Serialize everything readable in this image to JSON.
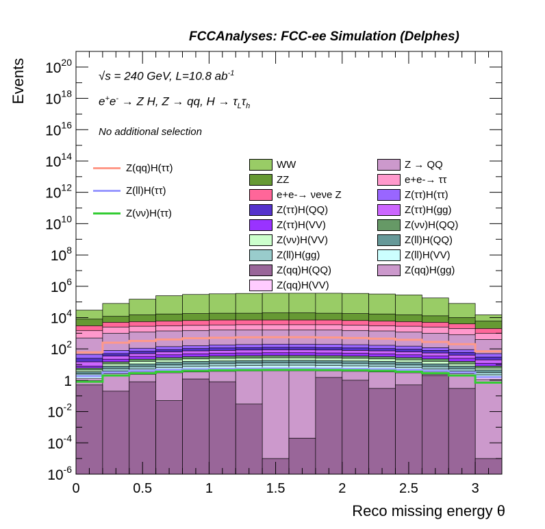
{
  "banner": "FCCAnalyses: FCC-ee Simulation (Delphes)",
  "info": {
    "energy_prefix": "√s = 240 GeV, L=10.8 ab",
    "energy_sup": "-1",
    "process_a": "e",
    "process_b": " → Z H, Z → qq, H → τ",
    "process_sub1": "L",
    "process_sub2": "h",
    "selection": "No additional selection"
  },
  "chart_data": {
    "type": "area",
    "title": "FCCAnalyses: FCC-ee Simulation (Delphes)",
    "xlabel": "Reco missing energy θ",
    "ylabel": "Events",
    "xlim": [
      0,
      3.2
    ],
    "ylim": [
      1e-06,
      1e+21
    ],
    "y_scale": "log",
    "grid": false,
    "legend_placement": "top",
    "bin_edges": [
      0,
      0.2,
      0.4,
      0.6,
      0.8,
      1.0,
      1.2,
      1.4,
      1.6,
      1.8,
      2.0,
      2.2,
      2.4,
      2.6,
      2.8,
      3.0,
      3.2
    ],
    "x_ticks": [
      0,
      0.5,
      1,
      1.5,
      2,
      2.5,
      3
    ],
    "x_tick_labels": [
      "0",
      "0.5",
      "1",
      "1.5",
      "2",
      "2.5",
      "3"
    ],
    "y_ticks": [
      {
        "mant": "10",
        "exp": "-6",
        "v": 1e-06
      },
      {
        "mant": "10",
        "exp": "-4",
        "v": 0.0001
      },
      {
        "mant": "10",
        "exp": "-2",
        "v": 0.01
      },
      {
        "mant": "1",
        "exp": "",
        "v": 1
      },
      {
        "mant": "10",
        "exp": "2",
        "v": 100.0
      },
      {
        "mant": "10",
        "exp": "4",
        "v": 10000.0
      },
      {
        "mant": "10",
        "exp": "6",
        "v": 1000000.0
      },
      {
        "mant": "10",
        "exp": "8",
        "v": 100000000.0
      },
      {
        "mant": "10",
        "exp": "10",
        "v": 10000000000.0
      },
      {
        "mant": "10",
        "exp": "12",
        "v": 1000000000000.0
      },
      {
        "mant": "10",
        "exp": "14",
        "v": 100000000000000.0
      },
      {
        "mant": "10",
        "exp": "16",
        "v": 1e+16
      },
      {
        "mant": "10",
        "exp": "18",
        "v": 1e+18
      },
      {
        "mant": "10",
        "exp": "20",
        "v": 1e+20
      }
    ],
    "stack_cumulative": [
      {
        "name": "WW",
        "color": "#99cc66",
        "values": [
          30000.0,
          80000.0,
          150000.0,
          250000.0,
          300000.0,
          330000.0,
          350000.0,
          360000.0,
          360000.0,
          360000.0,
          350000.0,
          320000.0,
          280000.0,
          180000.0,
          80000.0,
          15000.0
        ]
      },
      {
        "name": "ZZ",
        "color": "#669933",
        "values": [
          8000.0,
          12000.0,
          15000.0,
          17000.0,
          18000.0,
          19000.0,
          19000.0,
          20000.0,
          20000.0,
          19000.0,
          18000.0,
          17000.0,
          15000.0,
          13000.0,
          10000.0,
          6000.0
        ]
      },
      {
        "name": "e+e-→ νeνe Z",
        "color": "#ff6699",
        "values": [
          3000.0,
          5000.0,
          5500.0,
          6000.0,
          6500.0,
          7000.0,
          7000.0,
          7000.0,
          7000.0,
          7000.0,
          6500.0,
          6000.0,
          5500.0,
          5000.0,
          4000.0,
          2000.0
        ]
      },
      {
        "name": "e+e-→ ττ",
        "color": "#ff99cc",
        "values": [
          1500.0,
          2500.0,
          2800.0,
          3000.0,
          3200.0,
          3400.0,
          3500.0,
          3500.0,
          3500.0,
          3500.0,
          3300.0,
          3000.0,
          2800.0,
          2500.0,
          2000.0,
          1000.0
        ]
      },
      {
        "name": "Z → QQ",
        "color": "#cc99cc",
        "values": [
          500.0,
          1000.0,
          1200.0,
          1400.0,
          1500.0,
          1600.0,
          1600.0,
          1600.0,
          1600.0,
          1600.0,
          1500.0,
          1400.0,
          1200.0,
          1000.0,
          800.0,
          400.0
        ]
      },
      {
        "name": "Z(ττ)H(ττ)",
        "color": "#9966ff",
        "values": [
          45,
          80,
          110,
          140,
          160,
          180,
          190,
          200,
          200,
          195,
          185,
          170,
          150,
          120,
          90,
          50
        ]
      },
      {
        "name": "Z(ττ)H(QQ)",
        "color": "#5533cc",
        "values": [
          25,
          50,
          70,
          90,
          105,
          115,
          120,
          125,
          125,
          120,
          115,
          105,
          95,
          80,
          60,
          30
        ]
      },
      {
        "name": "Z(ττ)H(gg)",
        "color": "#cc66ff",
        "values": [
          15,
          35,
          50,
          65,
          75,
          80,
          85,
          88,
          88,
          85,
          80,
          75,
          65,
          55,
          40,
          20
        ]
      },
      {
        "name": "Z(ττ)H(VV)",
        "color": "#9933ff",
        "values": [
          8,
          22,
          33,
          42,
          48,
          52,
          55,
          57,
          57,
          55,
          52,
          48,
          42,
          35,
          25,
          12
        ]
      },
      {
        "name": "Z(νν)H(QQ)",
        "color": "#669966",
        "values": [
          6,
          15,
          22,
          28,
          32,
          35,
          37,
          38,
          38,
          37,
          35,
          32,
          28,
          23,
          16,
          8
        ]
      },
      {
        "name": "Z(νν)H(VV)",
        "color": "#ccffcc",
        "values": [
          4.5,
          11,
          16,
          20,
          23,
          25,
          26,
          27,
          27,
          26,
          25,
          23,
          20,
          16,
          11,
          6
        ]
      },
      {
        "name": "Z(ll)H(QQ)",
        "color": "#669999",
        "values": [
          3.5,
          8,
          11,
          14,
          16,
          17,
          18,
          18.5,
          18.5,
          18,
          17,
          16,
          14,
          11,
          8,
          4.5
        ]
      },
      {
        "name": "Z(ll)H(gg)",
        "color": "#99cccc",
        "values": [
          2.5,
          5.5,
          7.5,
          9.5,
          11,
          12,
          12.5,
          13,
          13,
          12.5,
          12,
          11,
          9.5,
          7.5,
          5.5,
          3.2
        ]
      },
      {
        "name": "Z(ll)H(VV)",
        "color": "#ccffff",
        "values": [
          1.8,
          3.8,
          5.2,
          6.5,
          7.5,
          8.2,
          8.6,
          9,
          9,
          8.6,
          8.2,
          7.5,
          6.5,
          5.2,
          3.8,
          2.2
        ]
      },
      {
        "name": "Z(qq)H(VV)",
        "color": "#ffccff",
        "values": [
          1.3,
          2.6,
          3.5,
          4.5,
          5.2,
          5.6,
          5.9,
          6.1,
          6.1,
          5.9,
          5.6,
          5.2,
          4.5,
          3.5,
          2.6,
          1.5
        ]
      },
      {
        "name": "Z(qq)H(gg)",
        "color": "#cc99cc",
        "values": [
          1,
          1.8,
          2.4,
          3,
          3.4,
          3.7,
          3.9,
          4,
          4,
          3.9,
          3.7,
          3.4,
          3,
          2.4,
          1.8,
          1.1
        ]
      },
      {
        "name": "Z(qq)H(QQ)",
        "color": "#996699",
        "values": [
          0.5,
          0.2,
          0.8,
          0.05,
          1.2,
          0.8,
          0.03,
          1e-05,
          0.0002,
          1.5,
          1.0,
          0.3,
          0.5,
          2.0,
          0.3,
          1e-05
        ]
      }
    ],
    "signal_lines": [
      {
        "name": "Z(qq)H(ττ)",
        "color": "#ff9988",
        "values": [
          60,
          250,
          320,
          400,
          480,
          520,
          550,
          560,
          560,
          540,
          500,
          450,
          380,
          280,
          200,
          70
        ]
      },
      {
        "name": "Z(ll)H(ττ)",
        "color": "#9999ff",
        "values": [
          1.8,
          3.2,
          4.0,
          4.6,
          5.0,
          5.3,
          5.5,
          5.6,
          5.6,
          5.5,
          5.3,
          5.0,
          4.6,
          4.0,
          3.2,
          1.6
        ]
      },
      {
        "name": "Z(νν)H(ττ)",
        "color": "#33cc33",
        "values": [
          0.8,
          2.0,
          2.8,
          3.5,
          4.0,
          4.3,
          4.5,
          4.6,
          4.6,
          4.5,
          4.3,
          4.0,
          3.5,
          2.8,
          2.0,
          0.7
        ]
      }
    ],
    "legend_signal": [
      {
        "label": "Z(qq)H(ττ)",
        "color": "#ff9988"
      },
      {
        "label": "Z(ll)H(ττ)",
        "color": "#9999ff"
      },
      {
        "label": "Z(νν)H(ττ)",
        "color": "#33cc33"
      }
    ],
    "legend_bkg": [
      {
        "label": "WW",
        "color": "#99cc66"
      },
      {
        "label": "Z → QQ",
        "color": "#cc99cc"
      },
      {
        "label": "ZZ",
        "color": "#669933"
      },
      {
        "label": "e+e-→ ττ",
        "color": "#ff99cc"
      },
      {
        "label": "e+e-→ νeνe Z",
        "color": "#ff6699"
      },
      {
        "label": "Z(ττ)H(ττ)",
        "color": "#9966ff"
      },
      {
        "label": "Z(ττ)H(QQ)",
        "color": "#5533cc"
      },
      {
        "label": "Z(ττ)H(gg)",
        "color": "#cc66ff"
      },
      {
        "label": "Z(ττ)H(VV)",
        "color": "#9933ff"
      },
      {
        "label": "Z(νν)H(QQ)",
        "color": "#669966"
      },
      {
        "label": "Z(νν)H(VV)",
        "color": "#ccffcc"
      },
      {
        "label": "Z(ll)H(QQ)",
        "color": "#669999"
      },
      {
        "label": "Z(ll)H(gg)",
        "color": "#99cccc"
      },
      {
        "label": "Z(ll)H(VV)",
        "color": "#ccffff"
      },
      {
        "label": "Z(qq)H(QQ)",
        "color": "#996699"
      },
      {
        "label": "Z(qq)H(gg)",
        "color": "#cc99cc"
      },
      {
        "label": "Z(qq)H(VV)",
        "color": "#ffccff"
      }
    ]
  }
}
